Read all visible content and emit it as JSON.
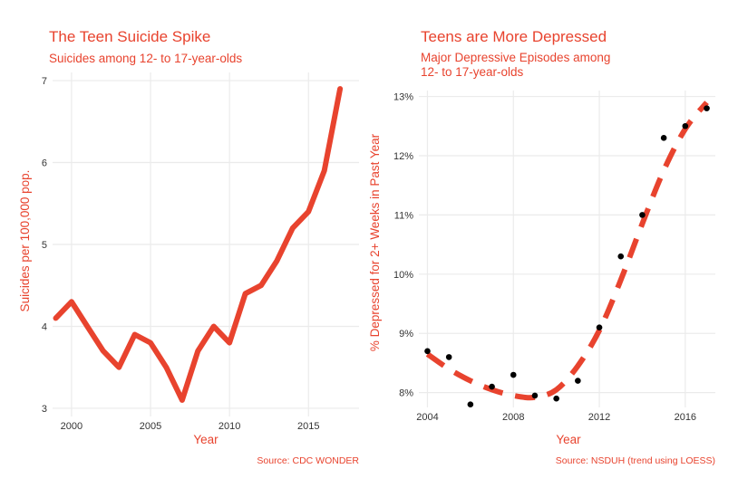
{
  "colors": {
    "accent": "#e8432e",
    "points": "#000000",
    "grid": "#ebebeb"
  },
  "chart_data": [
    {
      "type": "line",
      "title": "The Teen Suicide Spike",
      "subtitle": "Suicides among 12- to 17-year-olds",
      "xlabel": "Year",
      "ylabel": "Suicides per 100,000 pop.",
      "source": "Source: CDC WONDER",
      "xlim": [
        1999,
        2017
      ],
      "ylim": [
        3,
        7
      ],
      "xticks": [
        2000,
        2005,
        2010,
        2015
      ],
      "yticks": [
        3,
        4,
        5,
        6,
        7
      ],
      "grid": true,
      "x": [
        1999,
        2000,
        2001,
        2002,
        2003,
        2004,
        2005,
        2006,
        2007,
        2008,
        2009,
        2010,
        2011,
        2012,
        2013,
        2014,
        2015,
        2016,
        2017
      ],
      "series": [
        {
          "values": [
            4.1,
            4.3,
            4.0,
            3.7,
            3.5,
            3.9,
            3.8,
            3.5,
            3.1,
            3.7,
            4.0,
            3.8,
            4.4,
            4.5,
            4.8,
            5.2,
            5.4,
            5.9,
            6.9
          ]
        }
      ]
    },
    {
      "type": "scatter",
      "title": "Teens are More Depressed",
      "subtitle": [
        "Major Depressive Episodes among",
        "12- to 17-year-olds"
      ],
      "xlabel": "Year",
      "ylabel": "% Depressed for 2+ Weeks in Past Year",
      "source": "Source: NSDUH (trend using LOESS)",
      "xlim": [
        2004,
        2017
      ],
      "ylim": [
        8,
        13
      ],
      "xticks": [
        2004,
        2008,
        2012,
        2016
      ],
      "yticks": [
        8,
        9,
        10,
        11,
        12,
        13
      ],
      "ytick_labels": [
        "8%",
        "9%",
        "10%",
        "11%",
        "12%",
        "13%"
      ],
      "grid": true,
      "points": {
        "x": [
          2004,
          2005,
          2006,
          2007,
          2008,
          2009,
          2010,
          2011,
          2012,
          2013,
          2014,
          2015,
          2016,
          2017
        ],
        "y": [
          8.7,
          8.6,
          7.8,
          8.1,
          8.3,
          7.95,
          7.9,
          8.2,
          9.1,
          10.3,
          11.0,
          12.3,
          12.5,
          12.8
        ]
      },
      "trend": {
        "x": [
          2004,
          2005,
          2006,
          2007,
          2008,
          2009,
          2010,
          2011,
          2012,
          2013,
          2014,
          2015,
          2016,
          2017
        ],
        "y": [
          8.65,
          8.4,
          8.2,
          8.05,
          7.95,
          7.92,
          8.05,
          8.45,
          9.05,
          9.9,
          10.85,
          11.75,
          12.45,
          12.9
        ]
      }
    }
  ]
}
